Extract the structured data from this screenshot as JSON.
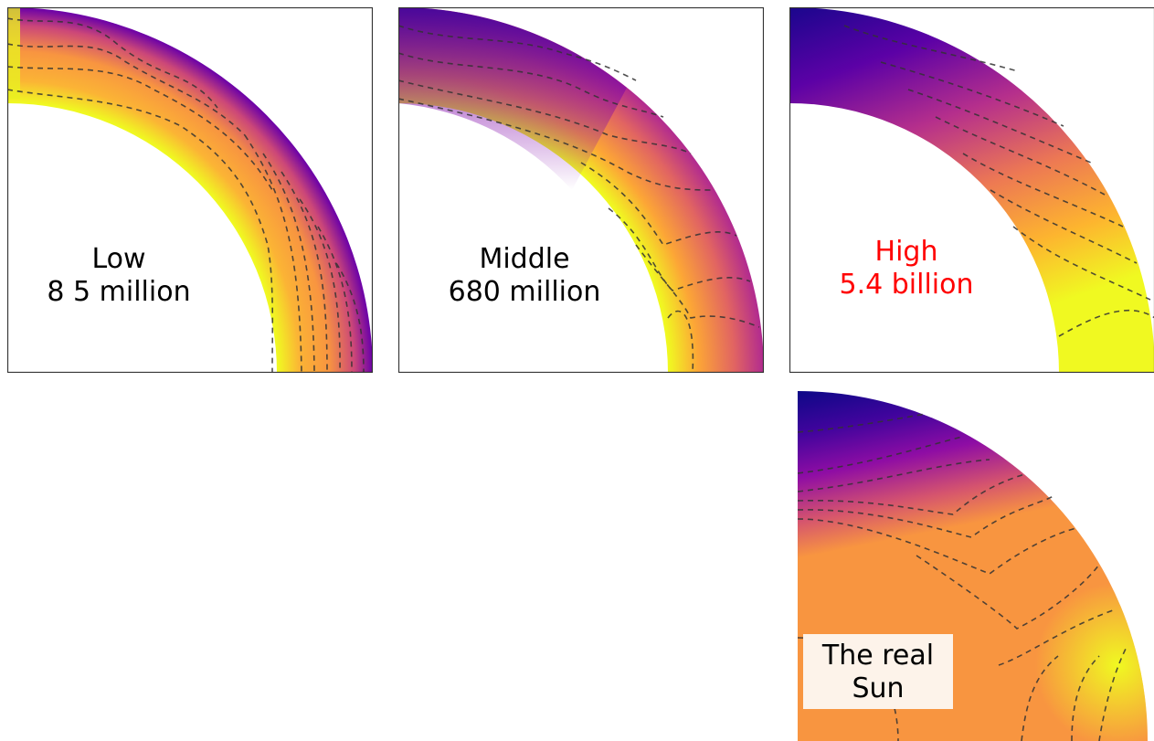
{
  "panels": [
    {
      "id": "low",
      "label_line1": "Low",
      "label_line2": "8 5 million",
      "label_color": "#000000"
    },
    {
      "id": "middle",
      "label_line1": "Middle",
      "label_line2": "680 million",
      "label_color": "#000000"
    },
    {
      "id": "high",
      "label_line1": "High",
      "label_line2": "5.4 billion",
      "label_color": "#ff0000"
    },
    {
      "id": "sun",
      "label_line1": "The real",
      "label_line2": "Sun",
      "label_color": "#000000"
    }
  ],
  "colormap": [
    "#0d0887",
    "#7e03a8",
    "#cc4778",
    "#f89540",
    "#f0f921"
  ]
}
